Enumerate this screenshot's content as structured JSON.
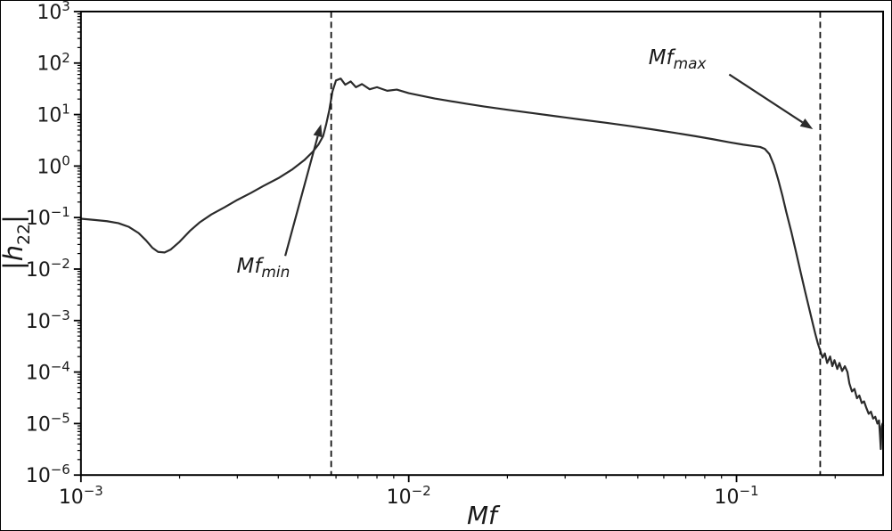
{
  "figure": {
    "background": "#ffffff",
    "frame_color": "#000000"
  },
  "chart_data": {
    "type": "line",
    "title": "",
    "xlabel": "Mf",
    "ylabel": {
      "open": "|",
      "symbol": "h̃",
      "subscript": "22",
      "close": "|"
    },
    "xscale": "log",
    "yscale": "log",
    "xlim": [
      0.001,
      0.28
    ],
    "ylim": [
      1e-06,
      1000
    ],
    "grid": false,
    "legend": "none",
    "line_color": "#2b2b2b",
    "axis_color": "#000000",
    "text_color": "#1a1a1a",
    "annotation_color": "#2b2b2b",
    "x_ticks": [
      {
        "value": 0.001,
        "base": "10",
        "exp": "−3"
      },
      {
        "value": 0.01,
        "base": "10",
        "exp": "−2"
      },
      {
        "value": 0.1,
        "base": "10",
        "exp": "−1"
      }
    ],
    "y_ticks": [
      {
        "value": 1000,
        "base": "10",
        "exp": "3"
      },
      {
        "value": 100,
        "base": "10",
        "exp": "2"
      },
      {
        "value": 10,
        "base": "10",
        "exp": "1"
      },
      {
        "value": 1,
        "base": "10",
        "exp": "0"
      },
      {
        "value": 0.1,
        "base": "10",
        "exp": "−1"
      },
      {
        "value": 0.01,
        "base": "10",
        "exp": "−2"
      },
      {
        "value": 0.001,
        "base": "10",
        "exp": "−3"
      },
      {
        "value": 0.0001,
        "base": "10",
        "exp": "−4"
      },
      {
        "value": 1e-05,
        "base": "10",
        "exp": "−5"
      },
      {
        "value": 1e-06,
        "base": "10",
        "exp": "−6"
      }
    ],
    "vlines": [
      {
        "name": "mf-min",
        "x": 0.0058,
        "style": "dashed"
      },
      {
        "name": "mf-max",
        "x": 0.18,
        "style": "dashed"
      }
    ],
    "annotations": [
      {
        "name": "mf-min",
        "text_main": "Mf",
        "text_sub": "min",
        "text_x": 0.0036,
        "text_y": 0.0085,
        "arrow_from_x": 0.0042,
        "arrow_from_y": 0.018,
        "arrow_to_x": 0.0054,
        "arrow_to_y": 6.5
      },
      {
        "name": "mf-max",
        "text_main": "Mf",
        "text_sub": "max",
        "text_x": 0.066,
        "text_y": 95,
        "arrow_from_x": 0.095,
        "arrow_from_y": 60,
        "arrow_to_x": 0.171,
        "arrow_to_y": 5.2
      }
    ],
    "series": [
      {
        "name": "h22-amplitude-spectrum",
        "x": [
          0.001,
          0.0011,
          0.0012,
          0.0013,
          0.0014,
          0.0015,
          0.00158,
          0.00165,
          0.00172,
          0.0018,
          0.00188,
          0.002,
          0.00215,
          0.0023,
          0.0025,
          0.00275,
          0.003,
          0.0033,
          0.0036,
          0.004,
          0.0044,
          0.0048,
          0.0051,
          0.0053,
          0.00548,
          0.0056,
          0.00572,
          0.00585,
          0.006,
          0.0062,
          0.0064,
          0.00665,
          0.0069,
          0.0072,
          0.0076,
          0.008,
          0.0086,
          0.0092,
          0.01,
          0.011,
          0.012,
          0.013,
          0.015,
          0.017,
          0.02,
          0.024,
          0.028,
          0.033,
          0.04,
          0.048,
          0.056,
          0.065,
          0.075,
          0.085,
          0.095,
          0.105,
          0.112,
          0.118,
          0.122,
          0.126,
          0.13,
          0.134,
          0.138,
          0.142,
          0.147,
          0.152,
          0.157,
          0.162,
          0.167,
          0.171,
          0.174,
          0.177,
          0.18,
          0.183,
          0.186,
          0.189,
          0.193,
          0.196,
          0.199,
          0.203,
          0.206,
          0.21,
          0.214,
          0.218,
          0.221,
          0.225,
          0.229,
          0.233,
          0.237,
          0.241,
          0.245,
          0.249,
          0.253,
          0.257,
          0.261,
          0.265,
          0.269,
          0.272,
          0.274,
          0.2755,
          0.277,
          0.279,
          0.28
        ],
        "y": [
          0.095,
          0.09,
          0.085,
          0.078,
          0.066,
          0.05,
          0.036,
          0.026,
          0.0215,
          0.021,
          0.024,
          0.034,
          0.055,
          0.08,
          0.115,
          0.16,
          0.22,
          0.3,
          0.41,
          0.58,
          0.85,
          1.3,
          1.9,
          2.6,
          3.8,
          6.5,
          12,
          28,
          46,
          50,
          38,
          44,
          34,
          39,
          31,
          34,
          29,
          30.5,
          26,
          23,
          20.5,
          18.8,
          16.2,
          14.3,
          12.4,
          10.6,
          9.3,
          8.1,
          6.9,
          5.9,
          5.1,
          4.4,
          3.8,
          3.3,
          2.9,
          2.6,
          2.45,
          2.35,
          2.15,
          1.7,
          1.05,
          0.55,
          0.27,
          0.125,
          0.052,
          0.021,
          0.0085,
          0.0036,
          0.0016,
          0.00085,
          0.00055,
          0.00036,
          0.00026,
          0.00019,
          0.00023,
          0.00015,
          0.0002,
          0.00013,
          0.00017,
          0.000115,
          0.00015,
          0.000105,
          0.00013,
          0.0001,
          6e-05,
          4.2e-05,
          4.7e-05,
          3.1e-05,
          3.5e-05,
          2.5e-05,
          2.7e-05,
          2e-05,
          1.55e-05,
          1.7e-05,
          1.25e-05,
          1.35e-05,
          1e-05,
          1.15e-05,
          6e-06,
          3.2e-06,
          8.8e-06,
          1e-05,
          9.2e-06
        ]
      }
    ]
  }
}
